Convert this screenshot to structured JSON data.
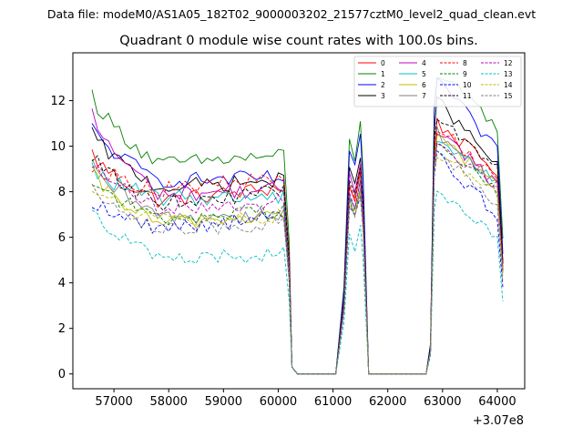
{
  "suptitle": "Data file: modeM0/AS1A05_182T02_9000003202_21577cztM0_level2_quad_clean.evt",
  "chart_data": {
    "type": "line",
    "title": "Quadrant 0 module wise count rates with 100.0s bins.",
    "xlabel": "",
    "ylabel": "",
    "x_offset_text": "+3.07e8",
    "xlim": [
      56250,
      64500
    ],
    "ylim": [
      -0.65,
      14.1
    ],
    "xticks": [
      57000,
      58000,
      59000,
      60000,
      61000,
      62000,
      63000,
      64000
    ],
    "xtick_labels": [
      "57000",
      "58000",
      "59000",
      "60000",
      "61000",
      "62000",
      "63000",
      "64000"
    ],
    "yticks": [
      0,
      2,
      4,
      6,
      8,
      10,
      12
    ],
    "ytick_labels": [
      "0",
      "2",
      "4",
      "6",
      "8",
      "10",
      "12"
    ],
    "legend_position": "top-right",
    "legend_columns": 4,
    "segment1": {
      "start": 56600,
      "end": 60100
    },
    "segment2": {
      "start": 61200,
      "end": 61550
    },
    "segment3": {
      "start": 62850,
      "end": 64050
    },
    "series": [
      {
        "name": "0",
        "color": "#ff0000",
        "dash": "solid",
        "level1": [
          9.7,
          7.6,
          8.2
        ],
        "level2": 8.8,
        "level3": [
          11.0,
          8.8
        ]
      },
      {
        "name": "1",
        "color": "#008000",
        "dash": "solid",
        "level1": [
          12.3,
          9.2,
          9.6
        ],
        "level2": 11.0,
        "level3": [
          13.2,
          10.8
        ]
      },
      {
        "name": "2",
        "color": "#0000ff",
        "dash": "solid",
        "level1": [
          10.8,
          8.5,
          8.6
        ],
        "level2": 10.4,
        "level3": [
          13.0,
          9.6
        ]
      },
      {
        "name": "3",
        "color": "#000000",
        "dash": "solid",
        "level1": [
          10.6,
          8.2,
          8.5
        ],
        "level2": 9.6,
        "level3": [
          12.0,
          9.0
        ]
      },
      {
        "name": "4",
        "color": "#bf00bf",
        "dash": "solid",
        "level1": [
          11.4,
          7.9,
          8.1
        ],
        "level2": 9.3,
        "level3": [
          10.8,
          8.2
        ]
      },
      {
        "name": "5",
        "color": "#00bfbf",
        "dash": "solid",
        "level1": [
          9.0,
          7.7,
          7.8
        ],
        "level2": 8.6,
        "level3": [
          10.3,
          8.4
        ]
      },
      {
        "name": "6",
        "color": "#bfbf00",
        "dash": "solid",
        "level1": [
          8.8,
          6.6,
          7.0
        ],
        "level2": 8.1,
        "level3": [
          10.4,
          8.3
        ]
      },
      {
        "name": "7",
        "color": "#808080",
        "dash": "solid",
        "level1": [
          9.1,
          6.9,
          7.0
        ],
        "level2": 8.4,
        "level3": [
          10.6,
          8.2
        ]
      },
      {
        "name": "8",
        "color": "#ff0000",
        "dash": "dashed",
        "level1": [
          9.2,
          8.1,
          8.6
        ],
        "level2": 9.0,
        "level3": [
          10.8,
          8.6
        ]
      },
      {
        "name": "9",
        "color": "#008000",
        "dash": "dashed",
        "level1": [
          8.6,
          6.8,
          7.2
        ],
        "level2": 8.3,
        "level3": [
          10.1,
          7.9
        ]
      },
      {
        "name": "10",
        "color": "#0000ff",
        "dash": "dashed",
        "level1": [
          7.6,
          6.4,
          6.9
        ],
        "level2": 7.9,
        "level3": [
          9.6,
          6.9
        ]
      },
      {
        "name": "11",
        "color": "#000000",
        "dash": "dashed",
        "level1": [
          9.6,
          7.5,
          8.0
        ],
        "level2": 9.1,
        "level3": [
          11.4,
          8.8
        ]
      },
      {
        "name": "12",
        "color": "#bf00bf",
        "dash": "dashed",
        "level1": [
          9.3,
          7.2,
          7.6
        ],
        "level2": 8.5,
        "level3": [
          10.2,
          8.2
        ]
      },
      {
        "name": "13",
        "color": "#00bfbf",
        "dash": "dashed",
        "level1": [
          7.4,
          5.0,
          5.3
        ],
        "level2": 6.5,
        "level3": [
          7.9,
          5.8
        ]
      },
      {
        "name": "14",
        "color": "#bfbf00",
        "dash": "dashed",
        "level1": [
          8.2,
          6.7,
          6.9
        ],
        "level2": 7.9,
        "level3": [
          9.8,
          7.8
        ]
      },
      {
        "name": "15",
        "color": "#808080",
        "dash": "dashed",
        "level1": [
          8.5,
          6.3,
          6.6
        ],
        "level2": 8.0,
        "level3": [
          9.9,
          7.3
        ]
      }
    ]
  }
}
